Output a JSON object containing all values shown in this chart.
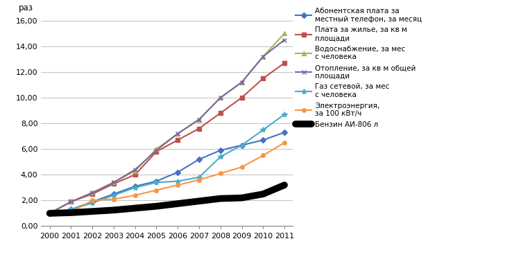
{
  "years": [
    2000,
    2001,
    2002,
    2003,
    2004,
    2005,
    2006,
    2007,
    2008,
    2009,
    2010,
    2011
  ],
  "series": [
    {
      "label": "Абонентская плата за\nместный телефон, за месяц",
      "values": [
        1.0,
        1.3,
        1.9,
        2.5,
        3.1,
        3.5,
        4.2,
        5.2,
        5.9,
        6.3,
        6.7,
        7.3
      ],
      "color": "#4472C4",
      "marker": "D",
      "linewidth": 1.5,
      "markersize": 4
    },
    {
      "label": "Плата за жилье, за кв м\nплощади",
      "values": [
        1.0,
        1.9,
        2.5,
        3.3,
        4.0,
        5.8,
        6.7,
        7.6,
        8.8,
        10.0,
        11.5,
        12.7
      ],
      "color": "#C0504D",
      "marker": "s",
      "linewidth": 1.5,
      "markersize": 4
    },
    {
      "label": "Водоснабжение, за мес\nс человека",
      "values": [
        1.0,
        1.9,
        2.6,
        3.4,
        4.3,
        6.0,
        7.2,
        8.3,
        10.0,
        11.2,
        13.2,
        15.0
      ],
      "color": "#9BBB59",
      "marker": "^",
      "linewidth": 1.5,
      "markersize": 5
    },
    {
      "label": "Отопление, за кв м общей\nплощади",
      "values": [
        1.0,
        1.9,
        2.6,
        3.4,
        4.4,
        5.9,
        7.2,
        8.3,
        10.0,
        11.2,
        13.2,
        14.5
      ],
      "color": "#8064A2",
      "marker": "x",
      "linewidth": 1.5,
      "markersize": 5
    },
    {
      "label": "Газ сетевой, за мес\nс человека",
      "values": [
        1.0,
        1.3,
        1.8,
        2.4,
        3.0,
        3.4,
        3.5,
        3.8,
        5.4,
        6.3,
        7.5,
        8.7
      ],
      "color": "#4BACC6",
      "marker": "*",
      "linewidth": 1.5,
      "markersize": 6
    },
    {
      "label": "Электроэнергия,\nза 100 кВт/ч",
      "values": [
        1.0,
        1.1,
        2.0,
        2.1,
        2.4,
        2.8,
        3.2,
        3.6,
        4.1,
        4.6,
        5.5,
        6.5
      ],
      "color": "#F79646",
      "marker": "o",
      "linewidth": 1.5,
      "markersize": 4
    },
    {
      "label": "Бензин АИ-806 л",
      "values": [
        1.0,
        1.05,
        1.15,
        1.25,
        1.4,
        1.55,
        1.75,
        1.95,
        2.15,
        2.2,
        2.5,
        3.2
      ],
      "color": "#000000",
      "marker": null,
      "linewidth": 7,
      "markersize": 0
    }
  ],
  "ylabel": "раз",
  "ylim": [
    0,
    16
  ],
  "yticks": [
    0,
    2,
    4,
    6,
    8,
    10,
    12,
    14,
    16
  ],
  "ytick_labels": [
    "0,00",
    "2,00",
    "4,00",
    "6,00",
    "8,00",
    "10,00",
    "12,00",
    "14,00",
    "16,00"
  ],
  "xlim": [
    1999.6,
    2011.4
  ],
  "xticks": [
    2000,
    2001,
    2002,
    2003,
    2004,
    2005,
    2006,
    2007,
    2008,
    2009,
    2010,
    2011
  ],
  "grid_color": "#BFBFBF",
  "background_color": "#FFFFFF",
  "legend_fontsize": 7.5,
  "axis_fontsize": 8.5,
  "tick_fontsize": 8
}
